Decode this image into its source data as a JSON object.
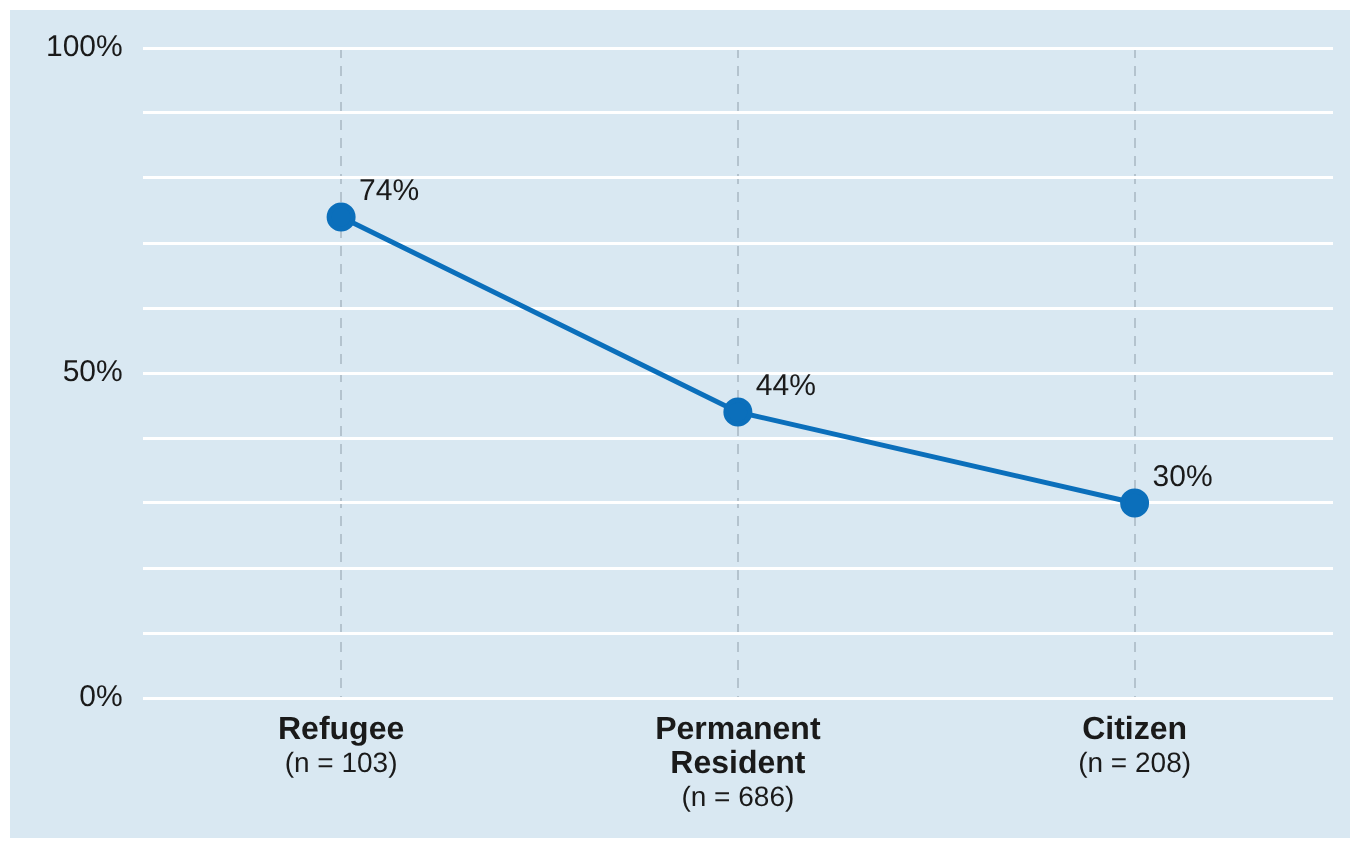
{
  "chart_data": {
    "type": "line",
    "categories": [
      "Refugee\n(n = 103)",
      "Permanent\nResident\n(n = 686)",
      "Citizen\n(n = 208)"
    ],
    "series": [
      {
        "color": "#0b6fbb",
        "values": [
          74,
          44,
          30
        ],
        "value_labels": [
          "74%",
          "44%",
          "30%"
        ]
      }
    ],
    "ylim": [
      0,
      100
    ],
    "yticks": [
      {
        "value": 0,
        "label": "0%"
      },
      {
        "value": 10,
        "label": null
      },
      {
        "value": 20,
        "label": null
      },
      {
        "value": 30,
        "label": null
      },
      {
        "value": 40,
        "label": null
      },
      {
        "value": 50,
        "label": "50%"
      },
      {
        "value": 60,
        "label": null
      },
      {
        "value": 70,
        "label": null
      },
      {
        "value": 80,
        "label": null
      },
      {
        "value": 90,
        "label": null
      },
      {
        "value": 100,
        "label": "100%"
      }
    ],
    "grid": true,
    "marker": "circle",
    "line_style": "solid",
    "legend": false
  }
}
